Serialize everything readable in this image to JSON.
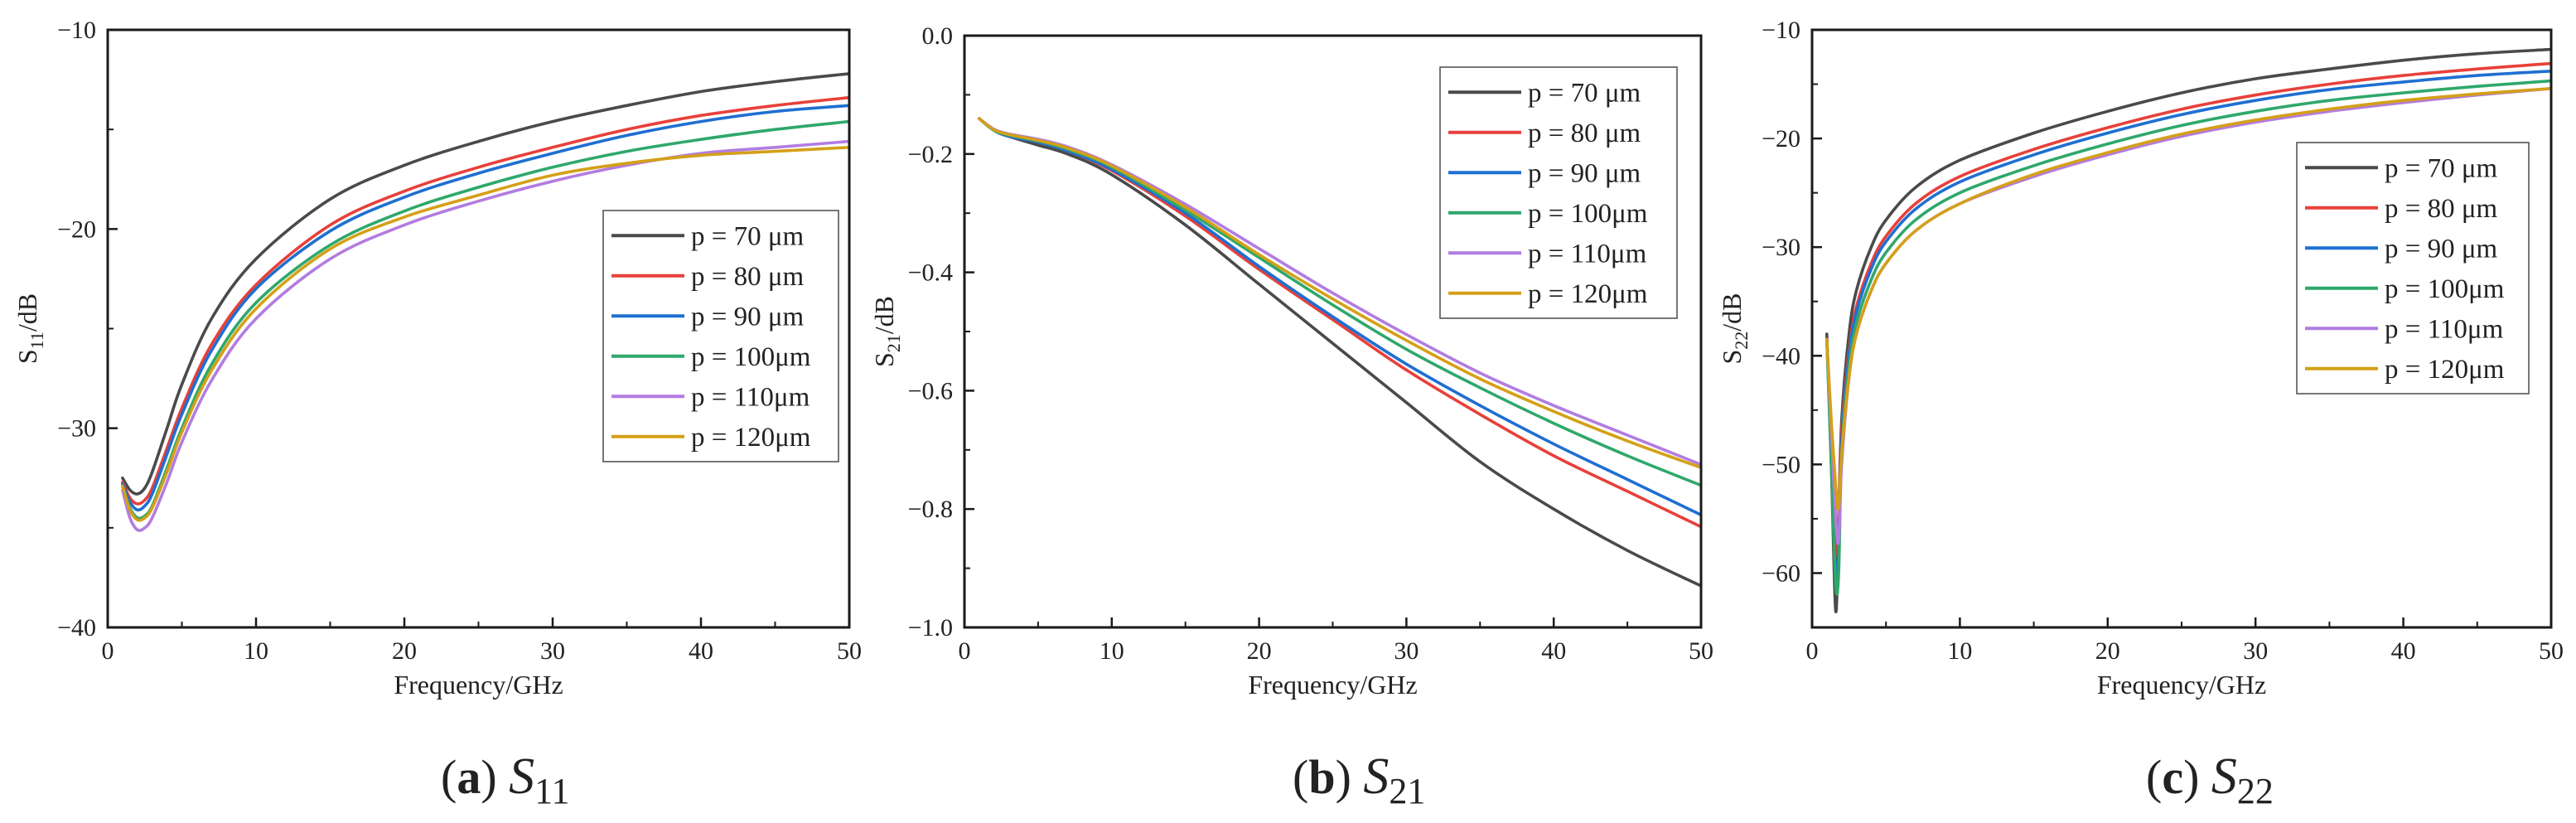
{
  "chart_data": [
    {
      "id": "a",
      "type": "line",
      "caption": {
        "letter": "a",
        "symbol": "S",
        "subscript": "11"
      },
      "xlabel": "Frequency/GHz",
      "ylabel": {
        "base": "S",
        "sub": "11",
        "unit": "/dB"
      },
      "xlim": [
        0,
        50
      ],
      "ylim": [
        -40,
        -10
      ],
      "xticks": [
        0,
        10,
        20,
        30,
        40,
        50
      ],
      "yticks": [
        -40,
        -30,
        -20,
        -10
      ],
      "ytick_labels": [
        "−40",
        "−30",
        "−20",
        "−10"
      ],
      "legend_position": "middle-right",
      "x": [
        1,
        1.5,
        2,
        2.5,
        3,
        4,
        5,
        7,
        10,
        15,
        20,
        25,
        30,
        35,
        40,
        45,
        50
      ],
      "series": [
        {
          "name": "p =  70 μm",
          "color": "#4a4a4a",
          "values": [
            -32.5,
            -33.1,
            -33.3,
            -33.0,
            -32.2,
            -30.0,
            -27.8,
            -24.5,
            -21.5,
            -18.5,
            -16.8,
            -15.6,
            -14.6,
            -13.8,
            -13.1,
            -12.6,
            -12.2
          ]
        },
        {
          "name": "p =  80 μm",
          "color": "#e8403a",
          "values": [
            -32.7,
            -33.5,
            -33.8,
            -33.6,
            -33.0,
            -31.0,
            -29.0,
            -25.8,
            -22.8,
            -19.8,
            -18.1,
            -16.9,
            -15.9,
            -15.0,
            -14.3,
            -13.8,
            -13.4
          ]
        },
        {
          "name": "p =  90 μm",
          "color": "#1f6fd1",
          "values": [
            -32.8,
            -33.7,
            -34.1,
            -33.9,
            -33.3,
            -31.3,
            -29.3,
            -26.1,
            -23.0,
            -20.1,
            -18.4,
            -17.2,
            -16.2,
            -15.3,
            -14.6,
            -14.1,
            -13.8
          ]
        },
        {
          "name": "p = 100μm",
          "color": "#2fa86b",
          "values": [
            -32.9,
            -34.0,
            -34.5,
            -34.4,
            -33.9,
            -32.0,
            -30.0,
            -26.8,
            -23.7,
            -20.8,
            -19.1,
            -17.9,
            -16.9,
            -16.1,
            -15.5,
            -15.0,
            -14.6
          ]
        },
        {
          "name": "p = 110μm",
          "color": "#b27ce0",
          "values": [
            -33.1,
            -34.5,
            -35.1,
            -35.0,
            -34.5,
            -32.7,
            -30.7,
            -27.6,
            -24.5,
            -21.5,
            -19.8,
            -18.6,
            -17.6,
            -16.8,
            -16.2,
            -15.9,
            -15.6
          ]
        },
        {
          "name": "p = 120μm",
          "color": "#d4a017",
          "values": [
            -32.9,
            -34.1,
            -34.6,
            -34.5,
            -34.0,
            -32.2,
            -30.2,
            -27.1,
            -24.0,
            -21.0,
            -19.4,
            -18.3,
            -17.3,
            -16.7,
            -16.3,
            -16.1,
            -15.9
          ]
        }
      ]
    },
    {
      "id": "b",
      "type": "line",
      "caption": {
        "letter": "b",
        "symbol": "S",
        "subscript": "21"
      },
      "xlabel": "Frequency/GHz",
      "ylabel": {
        "base": "S",
        "sub": "21",
        "unit": "/dB"
      },
      "xlim": [
        0,
        50
      ],
      "ylim": [
        -1.0,
        0.0
      ],
      "xticks": [
        0,
        10,
        20,
        30,
        40,
        50
      ],
      "yticks": [
        -1.0,
        -0.8,
        -0.6,
        -0.4,
        -0.2,
        0.0
      ],
      "ytick_labels": [
        "−1.0",
        "−0.8",
        "−0.6",
        "−0.4",
        "−0.2",
        "0.0"
      ],
      "legend_position": "top-right",
      "x": [
        1,
        2,
        3,
        5,
        7,
        10,
        15,
        20,
        25,
        30,
        35,
        40,
        45,
        50
      ],
      "series": [
        {
          "name": "p =  70 μm",
          "color": "#4a4a4a",
          "values": [
            -0.14,
            -0.16,
            -0.17,
            -0.185,
            -0.2,
            -0.235,
            -0.32,
            -0.42,
            -0.52,
            -0.62,
            -0.72,
            -0.8,
            -0.87,
            -0.93
          ]
        },
        {
          "name": "p =  80 μm",
          "color": "#e8403a",
          "values": [
            -0.14,
            -0.16,
            -0.17,
            -0.18,
            -0.195,
            -0.228,
            -0.305,
            -0.395,
            -0.48,
            -0.565,
            -0.64,
            -0.71,
            -0.77,
            -0.83
          ]
        },
        {
          "name": "p =  90 μm",
          "color": "#1f6fd1",
          "values": [
            -0.14,
            -0.16,
            -0.17,
            -0.18,
            -0.195,
            -0.226,
            -0.3,
            -0.39,
            -0.475,
            -0.555,
            -0.625,
            -0.69,
            -0.75,
            -0.81
          ]
        },
        {
          "name": "p = 100μm",
          "color": "#2fa86b",
          "values": [
            -0.14,
            -0.16,
            -0.168,
            -0.178,
            -0.192,
            -0.222,
            -0.295,
            -0.375,
            -0.455,
            -0.53,
            -0.595,
            -0.655,
            -0.71,
            -0.76
          ]
        },
        {
          "name": "p = 110μm",
          "color": "#b27ce0",
          "values": [
            -0.14,
            -0.158,
            -0.166,
            -0.175,
            -0.188,
            -0.218,
            -0.285,
            -0.36,
            -0.435,
            -0.505,
            -0.57,
            -0.625,
            -0.675,
            -0.725
          ]
        },
        {
          "name": "p = 120μm",
          "color": "#d4a017",
          "values": [
            -0.14,
            -0.159,
            -0.167,
            -0.177,
            -0.19,
            -0.22,
            -0.29,
            -0.37,
            -0.445,
            -0.515,
            -0.58,
            -0.635,
            -0.685,
            -0.73
          ]
        }
      ]
    },
    {
      "id": "c",
      "type": "line",
      "caption": {
        "letter": "c",
        "symbol": "S",
        "subscript": "22"
      },
      "xlabel": "Frequency/GHz",
      "ylabel": {
        "base": "S",
        "sub": "22",
        "unit": "/dB"
      },
      "xlim": [
        0,
        50
      ],
      "ylim": [
        -65,
        -10
      ],
      "xticks": [
        0,
        10,
        20,
        30,
        40,
        50
      ],
      "yticks": [
        -60,
        -50,
        -40,
        -30,
        -20,
        -10
      ],
      "ytick_labels": [
        "−60",
        "−50",
        "−40",
        "−30",
        "−20",
        "−10"
      ],
      "legend_position": "top-right",
      "x": [
        1,
        1.3,
        1.6,
        1.8,
        2,
        2.5,
        3,
        4,
        5,
        7,
        10,
        15,
        20,
        25,
        30,
        35,
        40,
        45,
        50
      ],
      "series": [
        {
          "name": "p =  70 μm",
          "color": "#4a4a4a",
          "values": [
            -38,
            -50,
            -63.5,
            -55,
            -46,
            -38,
            -34,
            -30,
            -27.5,
            -24.5,
            -22,
            -19.5,
            -17.5,
            -15.8,
            -14.5,
            -13.6,
            -12.8,
            -12.2,
            -11.8
          ]
        },
        {
          "name": "p =  80 μm",
          "color": "#e8403a",
          "values": [
            -38.5,
            -48,
            -58,
            -55,
            -47,
            -39.5,
            -35.5,
            -31.5,
            -29,
            -26,
            -23.5,
            -21,
            -19,
            -17.3,
            -16,
            -15,
            -14.2,
            -13.6,
            -13.1
          ]
        },
        {
          "name": "p =  90 μm",
          "color": "#1f6fd1",
          "values": [
            -38.5,
            -49,
            -60,
            -58,
            -48,
            -40,
            -36,
            -32,
            -29.5,
            -26.5,
            -24,
            -21.5,
            -19.5,
            -17.8,
            -16.5,
            -15.5,
            -14.8,
            -14.2,
            -13.8
          ]
        },
        {
          "name": "p = 100μm",
          "color": "#2fa86b",
          "values": [
            -38.5,
            -50,
            -61,
            -60,
            -49,
            -41,
            -37,
            -33,
            -30.5,
            -27.5,
            -25,
            -22.5,
            -20.5,
            -18.8,
            -17.5,
            -16.5,
            -15.8,
            -15.2,
            -14.7
          ]
        },
        {
          "name": "p = 110μm",
          "color": "#b27ce0",
          "values": [
            -38.5,
            -47,
            -55,
            -57,
            -50,
            -42,
            -38,
            -34,
            -31.5,
            -28.5,
            -26,
            -23.5,
            -21.5,
            -19.8,
            -18.5,
            -17.5,
            -16.7,
            -16,
            -15.4
          ]
        },
        {
          "name": "p = 120μm",
          "color": "#d4a017",
          "values": [
            -38.5,
            -46,
            -52,
            -54,
            -49,
            -42,
            -38,
            -34,
            -31.5,
            -28.5,
            -26,
            -23.3,
            -21.3,
            -19.6,
            -18.3,
            -17.3,
            -16.5,
            -15.9,
            -15.4
          ]
        }
      ]
    }
  ]
}
